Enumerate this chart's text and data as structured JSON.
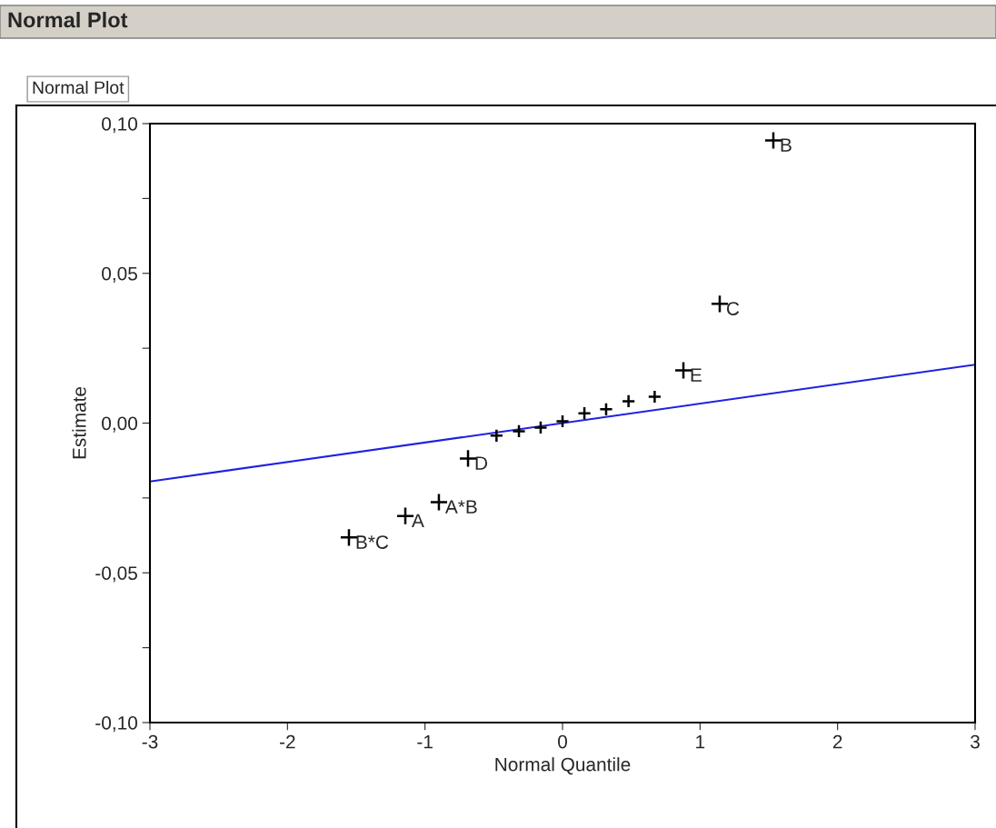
{
  "chart_data": {
    "type": "scatter",
    "title": "Normal Plot",
    "subtitle": "Normal Plot",
    "xlabel": "Normal Quantile",
    "ylabel": "Estimate",
    "xlim": [
      -3,
      3
    ],
    "xticks": [
      -3,
      -2,
      -1,
      0,
      1,
      2,
      3
    ],
    "ylim": [
      -0.1,
      0.1
    ],
    "yticks": [
      {
        "value": -0.1,
        "label": "-0,10"
      },
      {
        "value": -0.075,
        "label": null
      },
      {
        "value": -0.05,
        "label": "-0,05"
      },
      {
        "value": -0.025,
        "label": null
      },
      {
        "value": 0,
        "label": "0,00"
      },
      {
        "value": 0.025,
        "label": null
      },
      {
        "value": 0.05,
        "label": "0,05"
      },
      {
        "value": 0.075,
        "label": null
      },
      {
        "value": 0.1,
        "label": "0,10"
      }
    ],
    "grid": false,
    "series": [
      {
        "marker": "cross",
        "color": "#000000",
        "x": [
          -1.553,
          -1.143,
          -0.899,
          -0.687,
          0.879,
          1.143,
          1.533
        ],
        "values": [
          -0.0382,
          -0.031,
          -0.0264,
          -0.0118,
          0.0176,
          0.0398,
          0.0944
        ]
      },
      {
        "marker": "cross",
        "color": "#000000",
        "x": [
          -0.48,
          -0.317,
          -0.159,
          0,
          0.159,
          0.317,
          0.48,
          0.67
        ],
        "values": [
          -0.0042,
          -0.0027,
          -0.0015,
          0.0006,
          0.0033,
          0.0046,
          0.0073,
          0.0088
        ]
      },
      {
        "type": "line",
        "color": "#2020e0",
        "x": [
          -3,
          3
        ],
        "values": [
          -0.0195,
          0.0195
        ]
      }
    ],
    "annotations": [
      {
        "text": "B*C",
        "x": -1.553,
        "y": -0.0382
      },
      {
        "text": "A",
        "x": -1.143,
        "y": -0.031
      },
      {
        "text": "A*B",
        "x": -0.899,
        "y": -0.0264
      },
      {
        "text": "D",
        "x": -0.687,
        "y": -0.0118
      },
      {
        "text": "E",
        "x": 0.879,
        "y": 0.0176
      },
      {
        "text": "C",
        "x": 1.143,
        "y": 0.0398
      },
      {
        "text": "B",
        "x": 1.533,
        "y": 0.0944
      }
    ]
  }
}
